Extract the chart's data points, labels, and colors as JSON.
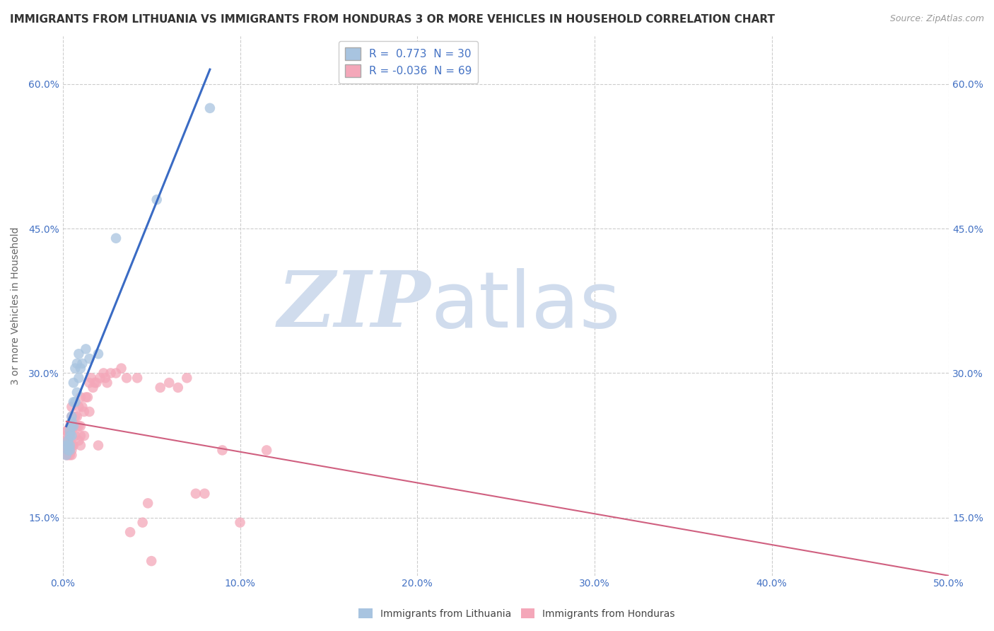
{
  "title": "IMMIGRANTS FROM LITHUANIA VS IMMIGRANTS FROM HONDURAS 3 OR MORE VEHICLES IN HOUSEHOLD CORRELATION CHART",
  "source": "Source: ZipAtlas.com",
  "ylabel": "3 or more Vehicles in Household",
  "xlim": [
    0.0,
    0.5
  ],
  "ylim": [
    0.09,
    0.65
  ],
  "xticks": [
    0.0,
    0.1,
    0.2,
    0.3,
    0.4,
    0.5
  ],
  "xticklabels": [
    "0.0%",
    "10.0%",
    "20.0%",
    "30.0%",
    "40.0%",
    "50.0%"
  ],
  "yticks": [
    0.15,
    0.3,
    0.45,
    0.6
  ],
  "yticklabels": [
    "15.0%",
    "30.0%",
    "45.0%",
    "60.0%"
  ],
  "legend_R_lithuania": "0.773",
  "legend_N_lithuania": "30",
  "legend_R_honduras": "-0.036",
  "legend_N_honduras": "69",
  "color_lithuania": "#a8c4e0",
  "color_honduras": "#f4a7b9",
  "color_line_lithuania": "#3a6bc4",
  "color_line_honduras": "#d06080",
  "watermark_color": "#d0dced",
  "background_color": "#ffffff",
  "grid_color": "#cccccc",
  "title_fontsize": 11,
  "source_fontsize": 9,
  "axis_label_fontsize": 10,
  "tick_fontsize": 10,
  "legend_fontsize": 11,
  "lithuania_x": [
    0.002,
    0.002,
    0.003,
    0.003,
    0.003,
    0.004,
    0.004,
    0.004,
    0.004,
    0.005,
    0.005,
    0.005,
    0.005,
    0.006,
    0.006,
    0.006,
    0.007,
    0.007,
    0.008,
    0.008,
    0.009,
    0.009,
    0.01,
    0.011,
    0.013,
    0.015,
    0.02,
    0.03,
    0.053,
    0.083
  ],
  "lithuania_y": [
    0.215,
    0.225,
    0.22,
    0.225,
    0.23,
    0.22,
    0.225,
    0.235,
    0.24,
    0.235,
    0.245,
    0.25,
    0.255,
    0.245,
    0.27,
    0.29,
    0.27,
    0.305,
    0.28,
    0.31,
    0.295,
    0.32,
    0.305,
    0.31,
    0.325,
    0.315,
    0.32,
    0.44,
    0.48,
    0.575
  ],
  "honduras_x": [
    0.002,
    0.002,
    0.002,
    0.002,
    0.002,
    0.002,
    0.003,
    0.003,
    0.003,
    0.003,
    0.003,
    0.004,
    0.004,
    0.004,
    0.004,
    0.004,
    0.005,
    0.005,
    0.005,
    0.005,
    0.005,
    0.005,
    0.006,
    0.006,
    0.007,
    0.007,
    0.008,
    0.008,
    0.009,
    0.009,
    0.009,
    0.01,
    0.01,
    0.01,
    0.01,
    0.011,
    0.012,
    0.012,
    0.013,
    0.014,
    0.015,
    0.015,
    0.016,
    0.017,
    0.018,
    0.019,
    0.02,
    0.021,
    0.023,
    0.024,
    0.025,
    0.027,
    0.03,
    0.033,
    0.036,
    0.038,
    0.042,
    0.045,
    0.048,
    0.05,
    0.055,
    0.06,
    0.065,
    0.07,
    0.075,
    0.08,
    0.09,
    0.1,
    0.115
  ],
  "honduras_y": [
    0.215,
    0.22,
    0.225,
    0.23,
    0.235,
    0.24,
    0.215,
    0.22,
    0.225,
    0.23,
    0.24,
    0.215,
    0.22,
    0.225,
    0.235,
    0.245,
    0.215,
    0.22,
    0.225,
    0.24,
    0.255,
    0.265,
    0.225,
    0.245,
    0.235,
    0.255,
    0.245,
    0.255,
    0.23,
    0.245,
    0.265,
    0.225,
    0.235,
    0.245,
    0.275,
    0.265,
    0.235,
    0.26,
    0.275,
    0.275,
    0.26,
    0.29,
    0.295,
    0.285,
    0.29,
    0.29,
    0.225,
    0.295,
    0.3,
    0.295,
    0.29,
    0.3,
    0.3,
    0.305,
    0.295,
    0.135,
    0.295,
    0.145,
    0.165,
    0.105,
    0.285,
    0.29,
    0.285,
    0.295,
    0.175,
    0.175,
    0.22,
    0.145,
    0.22
  ]
}
